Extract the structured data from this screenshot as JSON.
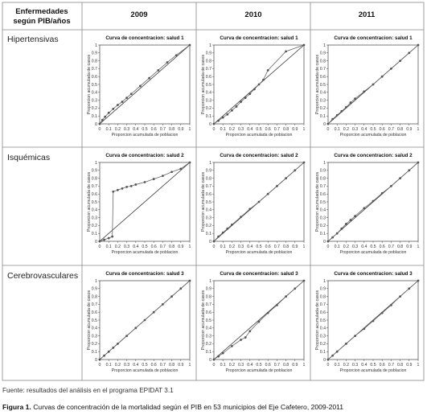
{
  "table": {
    "corner_header": [
      "Enfermedades",
      "según PIB/años"
    ],
    "years": [
      "2009",
      "2010",
      "2011"
    ],
    "rows": [
      "Hipertensivas",
      "Isquémicas",
      "Cerebrovasculares"
    ]
  },
  "footer": {
    "source": "Fuente: resultados del análisis en el programa EPIDAT 3.1",
    "caption_label": "Figura 1.",
    "caption_text": " Curvas de concentración de la mortalidad según el PIB en 53 municipios del Eje Cafetero, 2009-2011"
  },
  "chart_data": [
    {
      "type": "line",
      "row": "Hipertensivas",
      "year": "2009",
      "title": "Curva de concentracion: salud 1",
      "xlabel": "Proporcion acumulada de poblacion",
      "ylabel": "Proporcion acumulada de casos",
      "xlim": [
        0,
        1
      ],
      "ylim": [
        0,
        1
      ],
      "xticks": [
        "0",
        "0.1",
        "0.2",
        "0.3",
        "0.4",
        "0.5",
        "0.6",
        "0.7",
        "0.8",
        "0.9",
        "1"
      ],
      "yticks": [
        "0",
        "0.1",
        "0.2",
        "0.3",
        "0.4",
        "0.5",
        "0.6",
        "0.7",
        "0.8",
        "0.9",
        "1"
      ],
      "series": [
        {
          "x": [
            0,
            0.03,
            0.06,
            0.1,
            0.15,
            0.2,
            0.25,
            0.3,
            0.35,
            0.45,
            0.55,
            0.65,
            0.75,
            0.85,
            1
          ],
          "y": [
            0,
            0.05,
            0.09,
            0.14,
            0.19,
            0.24,
            0.28,
            0.33,
            0.38,
            0.48,
            0.58,
            0.68,
            0.78,
            0.87,
            1
          ]
        }
      ]
    },
    {
      "type": "line",
      "row": "Hipertensivas",
      "year": "2010",
      "title": "Curva de concentracion: salud 1",
      "xlabel": "Proporcion acumulada de poblacion",
      "ylabel": "Proporcion acumulada de casos",
      "xlim": [
        0,
        1
      ],
      "ylim": [
        0,
        1
      ],
      "xticks": [
        "0",
        "0.1",
        "0.2",
        "0.3",
        "0.4",
        "0.5",
        "0.6",
        "0.7",
        "0.8",
        "0.9",
        "1"
      ],
      "yticks": [
        "0",
        "0.1",
        "0.2",
        "0.3",
        "0.4",
        "0.5",
        "0.6",
        "0.7",
        "0.8",
        "0.9",
        "1"
      ],
      "series": [
        {
          "x": [
            0,
            0.05,
            0.1,
            0.15,
            0.2,
            0.25,
            0.3,
            0.35,
            0.4,
            0.45,
            0.5,
            0.55,
            0.6,
            0.8,
            1
          ],
          "y": [
            0,
            0.04,
            0.08,
            0.12,
            0.17,
            0.22,
            0.28,
            0.33,
            0.38,
            0.44,
            0.5,
            0.56,
            0.68,
            0.92,
            1
          ]
        }
      ]
    },
    {
      "type": "line",
      "row": "Hipertensivas",
      "year": "2011",
      "title": "Curva de concentracion: salud 1",
      "xlabel": "Proporcion acumulada de poblacion",
      "ylabel": "Proporcion acumulada de casos",
      "xlim": [
        0,
        1
      ],
      "ylim": [
        0,
        1
      ],
      "xticks": [
        "0",
        "0.1",
        "0.2",
        "0.3",
        "0.4",
        "0.5",
        "0.6",
        "0.7",
        "0.8",
        "0.9",
        "1"
      ],
      "yticks": [
        "0",
        "0.1",
        "0.2",
        "0.3",
        "0.4",
        "0.5",
        "0.6",
        "0.7",
        "0.8",
        "0.9",
        "1"
      ],
      "series": [
        {
          "x": [
            0,
            0.05,
            0.1,
            0.15,
            0.2,
            0.25,
            0.3,
            0.4,
            0.5,
            0.6,
            0.7,
            0.8,
            0.9,
            1
          ],
          "y": [
            0,
            0.06,
            0.11,
            0.16,
            0.21,
            0.27,
            0.32,
            0.41,
            0.5,
            0.6,
            0.7,
            0.8,
            0.9,
            1
          ]
        }
      ]
    },
    {
      "type": "line",
      "row": "Isquémicas",
      "year": "2009",
      "title": "Curva de concentracion: salud 2",
      "xlabel": "Proporcion acumulada de poblacion",
      "ylabel": "Proporcion acumulada de casos",
      "xlim": [
        0,
        1
      ],
      "ylim": [
        0,
        1
      ],
      "xticks": [
        "0",
        "0.1",
        "0.2",
        "0.3",
        "0.4",
        "0.5",
        "0.6",
        "0.7",
        "0.8",
        "0.9",
        "1"
      ],
      "yticks": [
        "0",
        "0.1",
        "0.2",
        "0.3",
        "0.4",
        "0.5",
        "0.6",
        "0.7",
        "0.8",
        "0.9",
        "1"
      ],
      "series": [
        {
          "x": [
            0,
            0.05,
            0.1,
            0.14,
            0.15,
            0.2,
            0.25,
            0.3,
            0.35,
            0.4,
            0.5,
            0.6,
            0.7,
            0.8,
            0.9,
            1
          ],
          "y": [
            0,
            0.02,
            0.04,
            0.06,
            0.63,
            0.65,
            0.67,
            0.69,
            0.7,
            0.72,
            0.75,
            0.79,
            0.83,
            0.88,
            0.92,
            1
          ]
        }
      ]
    },
    {
      "type": "line",
      "row": "Isquémicas",
      "year": "2010",
      "title": "Curva de concentracion: salud 2",
      "xlabel": "Proporcion acumulada de poblacion",
      "ylabel": "Proporcion acumulada de casos",
      "xlim": [
        0,
        1
      ],
      "ylim": [
        0,
        1
      ],
      "xticks": [
        "0",
        "0.1",
        "0.2",
        "0.3",
        "0.4",
        "0.5",
        "0.6",
        "0.7",
        "0.8",
        "0.9",
        "1"
      ],
      "yticks": [
        "0",
        "0.1",
        "0.2",
        "0.3",
        "0.4",
        "0.5",
        "0.6",
        "0.7",
        "0.8",
        "0.9",
        "1"
      ],
      "series": [
        {
          "x": [
            0,
            0.05,
            0.1,
            0.15,
            0.2,
            0.3,
            0.4,
            0.5,
            0.6,
            0.7,
            0.8,
            0.9,
            1
          ],
          "y": [
            0,
            0.06,
            0.11,
            0.16,
            0.21,
            0.31,
            0.41,
            0.5,
            0.6,
            0.7,
            0.8,
            0.9,
            1
          ]
        }
      ]
    },
    {
      "type": "line",
      "row": "Isquémicas",
      "year": "2011",
      "title": "Curva de concentracion: salud 2",
      "xlabel": "Proporcion acumulada de poblacion",
      "ylabel": "Proporcion acumulada de casos",
      "xlim": [
        0,
        1
      ],
      "ylim": [
        0,
        1
      ],
      "xticks": [
        "0",
        "0.1",
        "0.2",
        "0.3",
        "0.4",
        "0.5",
        "0.6",
        "0.7",
        "0.8",
        "0.9",
        "1"
      ],
      "yticks": [
        "0",
        "0.1",
        "0.2",
        "0.3",
        "0.4",
        "0.5",
        "0.6",
        "0.7",
        "0.8",
        "0.9",
        "1"
      ],
      "series": [
        {
          "x": [
            0,
            0.05,
            0.1,
            0.15,
            0.2,
            0.25,
            0.3,
            0.4,
            0.5,
            0.6,
            0.7,
            0.8,
            0.9,
            1
          ],
          "y": [
            0,
            0.05,
            0.1,
            0.16,
            0.22,
            0.27,
            0.32,
            0.42,
            0.51,
            0.61,
            0.7,
            0.8,
            0.9,
            1
          ]
        }
      ]
    },
    {
      "type": "line",
      "row": "Cerebrovasculares",
      "year": "2009",
      "title": "Curva de concentracion: salud 3",
      "xlabel": "Proporcion acumulada de poblacion",
      "ylabel": "Proporcion acumulada de casos",
      "xlim": [
        0,
        1
      ],
      "ylim": [
        0,
        1
      ],
      "xticks": [
        "0",
        "0.1",
        "0.2",
        "0.3",
        "0.4",
        "0.5",
        "0.6",
        "0.7",
        "0.8",
        "0.9",
        "1"
      ],
      "yticks": [
        "0",
        "0.1",
        "0.2",
        "0.3",
        "0.4",
        "0.5",
        "0.6",
        "0.7",
        "0.8",
        "0.9",
        "1"
      ],
      "series": [
        {
          "x": [
            0,
            0.05,
            0.1,
            0.15,
            0.2,
            0.3,
            0.4,
            0.5,
            0.6,
            0.7,
            0.8,
            0.9,
            1
          ],
          "y": [
            0,
            0.05,
            0.1,
            0.15,
            0.2,
            0.3,
            0.4,
            0.5,
            0.6,
            0.7,
            0.8,
            0.9,
            1
          ]
        }
      ]
    },
    {
      "type": "line",
      "row": "Cerebrovasculares",
      "year": "2010",
      "title": "Curva de concentracion: salud 3",
      "xlabel": "Proporcion acumulada de poblacion",
      "ylabel": "Proporcion acumulada de casos",
      "xlim": [
        0,
        1
      ],
      "ylim": [
        0,
        1
      ],
      "xticks": [
        "0",
        "0.1",
        "0.2",
        "0.3",
        "0.4",
        "0.5",
        "0.6",
        "0.7",
        "0.8",
        "0.9",
        "1"
      ],
      "yticks": [
        "0",
        "0.1",
        "0.2",
        "0.3",
        "0.4",
        "0.5",
        "0.6",
        "0.7",
        "0.8",
        "0.9",
        "1"
      ],
      "series": [
        {
          "x": [
            0,
            0.05,
            0.1,
            0.2,
            0.3,
            0.35,
            0.4,
            0.5,
            0.6,
            0.7,
            0.8,
            0.9,
            1
          ],
          "y": [
            0,
            0.04,
            0.08,
            0.17,
            0.25,
            0.28,
            0.36,
            0.48,
            0.59,
            0.69,
            0.8,
            0.9,
            1
          ]
        }
      ]
    },
    {
      "type": "line",
      "row": "Cerebrovasculares",
      "year": "2011",
      "title": "Curva de concentracion: salud 3",
      "xlabel": "Proporcion acumulada de poblacion",
      "ylabel": "Proporcion acumulada de casos",
      "xlim": [
        0,
        1
      ],
      "ylim": [
        0,
        1
      ],
      "xticks": [
        "0",
        "0.1",
        "0.2",
        "0.3",
        "0.4",
        "0.5",
        "0.6",
        "0.7",
        "0.8",
        "0.9",
        "1"
      ],
      "yticks": [
        "0",
        "0.1",
        "0.2",
        "0.3",
        "0.4",
        "0.5",
        "0.6",
        "0.7",
        "0.8",
        "0.9",
        "1"
      ],
      "series": [
        {
          "x": [
            0,
            0.05,
            0.1,
            0.2,
            0.3,
            0.4,
            0.5,
            0.6,
            0.7,
            0.8,
            0.9,
            1
          ],
          "y": [
            0,
            0.05,
            0.1,
            0.2,
            0.3,
            0.39,
            0.49,
            0.59,
            0.69,
            0.8,
            0.9,
            1
          ]
        }
      ]
    }
  ]
}
